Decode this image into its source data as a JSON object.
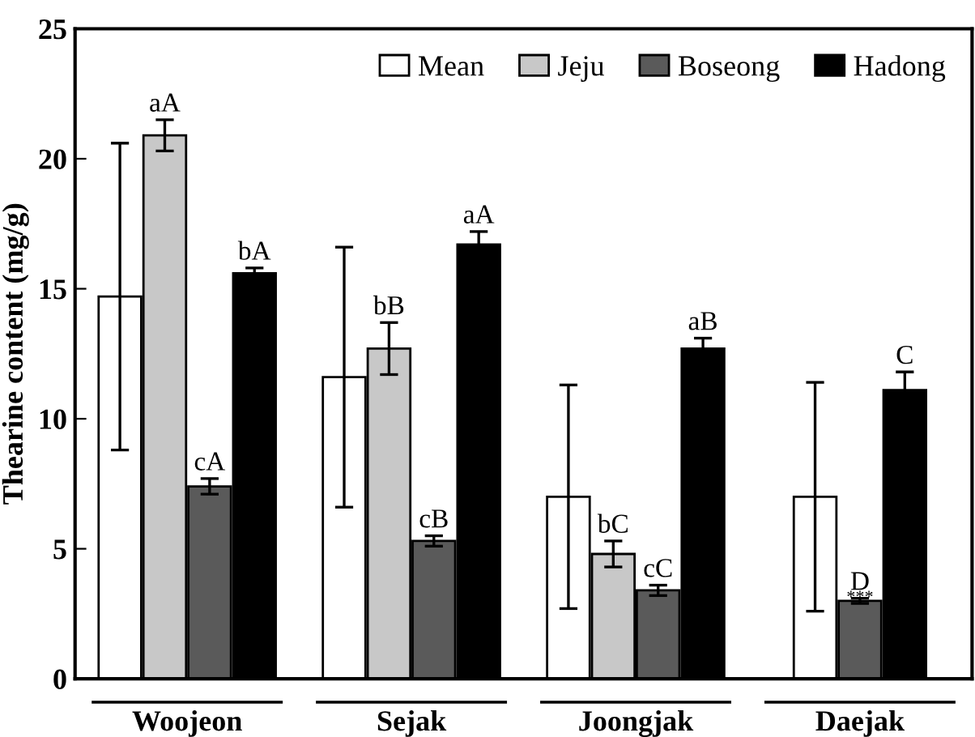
{
  "chart_data": {
    "type": "bar",
    "ylabel": "Thearine content (mg/g)",
    "categories": [
      "Woojeon",
      "Sejak",
      "Joongjak",
      "Daejak"
    ],
    "series": [
      {
        "name": "Mean",
        "color": "#ffffff",
        "values": [
          14.7,
          11.6,
          7.0,
          7.0
        ],
        "errors": [
          5.9,
          5.0,
          4.3,
          4.4
        ]
      },
      {
        "name": "Jeju",
        "color": "#c8c8c8",
        "values": [
          20.9,
          12.7,
          4.8,
          null
        ],
        "errors": [
          0.6,
          1.0,
          0.5,
          null
        ],
        "value_labels": [
          "aA",
          "bB",
          "bC",
          null
        ]
      },
      {
        "name": "Boseong",
        "color": "#5a5a5a",
        "values": [
          7.4,
          5.3,
          3.4,
          3.0
        ],
        "errors": [
          0.3,
          0.2,
          0.2,
          0.1
        ],
        "value_labels": [
          "cA",
          "cB",
          "cC",
          "D"
        ]
      },
      {
        "name": "Hadong",
        "color": "#000000",
        "values": [
          15.6,
          16.7,
          12.7,
          11.1
        ],
        "errors": [
          0.2,
          0.5,
          0.4,
          0.7
        ],
        "value_labels": [
          "bA",
          "aA",
          "aB",
          "C"
        ]
      }
    ],
    "annotations": [
      {
        "text": "***",
        "x": "Daejak",
        "y": 3.1
      }
    ],
    "ylim": [
      0,
      25
    ],
    "yticks": [
      0,
      5,
      10,
      15,
      20,
      25
    ],
    "grid": false,
    "legend": "top right"
  }
}
